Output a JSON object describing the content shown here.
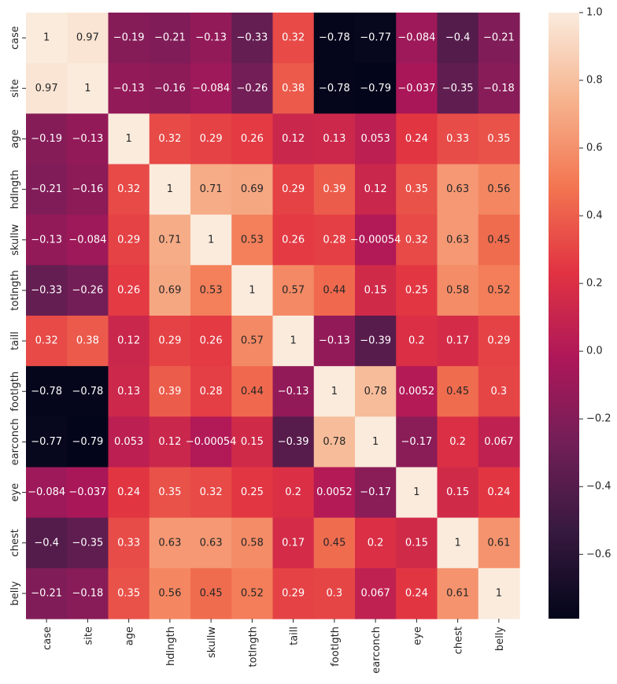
{
  "chart_data": {
    "type": "heatmap",
    "title": "",
    "xlabel": "",
    "ylabel": "",
    "labels": [
      "case",
      "site",
      "age",
      "hdlngth",
      "skullw",
      "totlngth",
      "taill",
      "footlgth",
      "earconch",
      "eye",
      "chest",
      "belly"
    ],
    "values": [
      [
        1,
        0.97,
        -0.19,
        -0.21,
        -0.13,
        -0.33,
        0.32,
        -0.78,
        -0.77,
        -0.084,
        -0.4,
        -0.21
      ],
      [
        0.97,
        1,
        -0.13,
        -0.16,
        -0.084,
        -0.26,
        0.38,
        -0.78,
        -0.79,
        -0.037,
        -0.35,
        -0.18
      ],
      [
        -0.19,
        -0.13,
        1,
        0.32,
        0.29,
        0.26,
        0.12,
        0.13,
        0.053,
        0.24,
        0.33,
        0.35
      ],
      [
        -0.21,
        -0.16,
        0.32,
        1,
        0.71,
        0.69,
        0.29,
        0.39,
        0.12,
        0.35,
        0.63,
        0.56
      ],
      [
        -0.13,
        -0.084,
        0.29,
        0.71,
        1,
        0.53,
        0.26,
        0.28,
        -0.00054,
        0.32,
        0.63,
        0.45
      ],
      [
        -0.33,
        -0.26,
        0.26,
        0.69,
        0.53,
        1,
        0.57,
        0.44,
        0.15,
        0.25,
        0.58,
        0.52
      ],
      [
        0.32,
        0.38,
        0.12,
        0.29,
        0.26,
        0.57,
        1,
        -0.13,
        -0.39,
        0.2,
        0.17,
        0.29
      ],
      [
        -0.78,
        -0.78,
        0.13,
        0.39,
        0.28,
        0.44,
        -0.13,
        1,
        0.78,
        0.0052,
        0.45,
        0.3
      ],
      [
        -0.77,
        -0.79,
        0.053,
        0.12,
        -0.00054,
        0.15,
        -0.39,
        0.78,
        1,
        -0.17,
        0.2,
        0.067
      ],
      [
        -0.084,
        -0.037,
        0.24,
        0.35,
        0.32,
        0.25,
        0.2,
        0.0052,
        -0.17,
        1,
        0.15,
        0.24
      ],
      [
        -0.4,
        -0.35,
        0.33,
        0.63,
        0.63,
        0.58,
        0.17,
        0.45,
        0.2,
        0.15,
        1,
        0.61
      ],
      [
        -0.21,
        -0.18,
        0.35,
        0.56,
        0.45,
        0.52,
        0.29,
        0.3,
        0.067,
        0.24,
        0.61,
        1
      ]
    ],
    "colorbar": {
      "vmin": -0.79,
      "vmax": 1.0,
      "ticks": [
        -0.6,
        -0.4,
        -0.2,
        0.0,
        0.2,
        0.4,
        0.6,
        0.8,
        1.0
      ],
      "tick_labels": [
        "−0.6",
        "−0.4",
        "−0.2",
        "0.0",
        "0.2",
        "0.4",
        "0.6",
        "0.8",
        "1.0"
      ],
      "colormap": "rocket",
      "colormap_stops": [
        "#03051a",
        "#36193e",
        "#701f57",
        "#ad1759",
        "#e13342",
        "#f37651",
        "#f6b48f",
        "#faebdd"
      ]
    }
  }
}
